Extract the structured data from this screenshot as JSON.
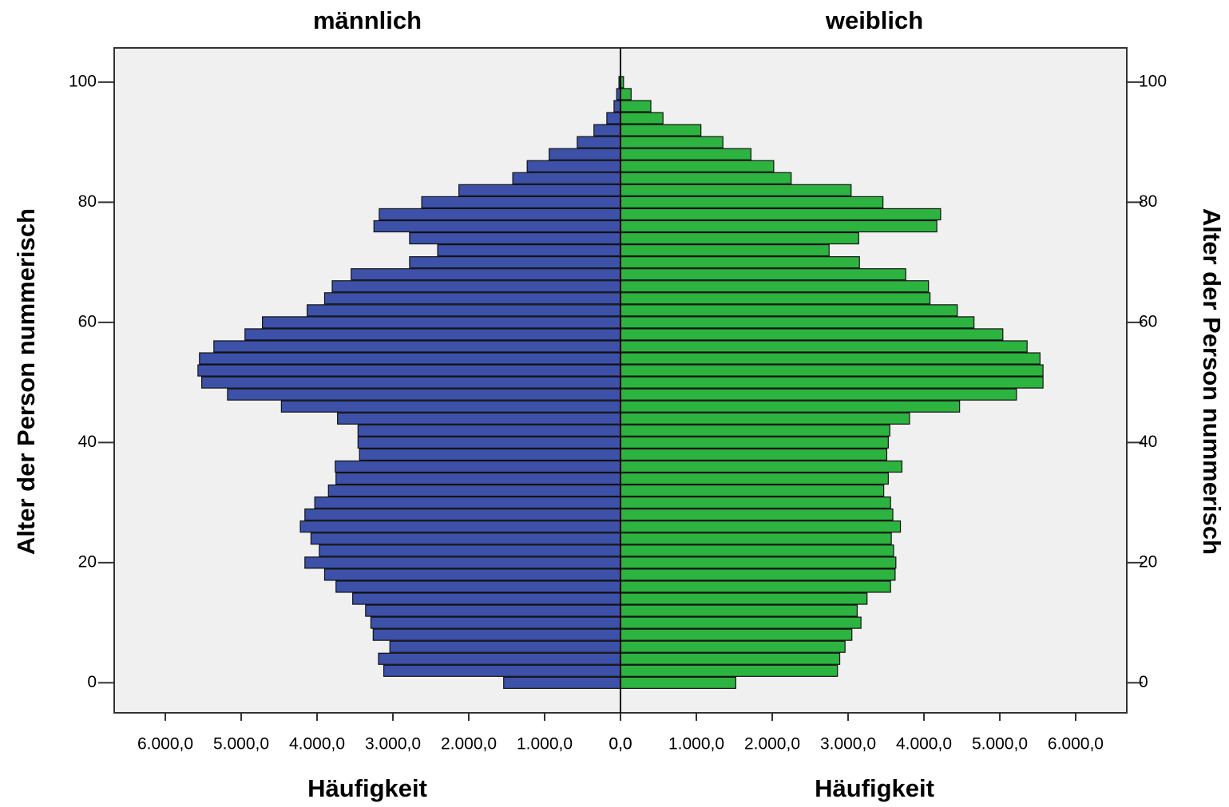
{
  "chart_data": {
    "type": "pyramid",
    "xlabel": "Häufigkeit",
    "ylabel": "Alter der Person nummerisch",
    "y": [
      0,
      2,
      4,
      6,
      8,
      10,
      12,
      14,
      16,
      18,
      20,
      22,
      24,
      26,
      28,
      30,
      32,
      34,
      36,
      38,
      40,
      42,
      44,
      46,
      48,
      50,
      52,
      54,
      56,
      58,
      60,
      62,
      64,
      66,
      68,
      70,
      72,
      74,
      76,
      78,
      80,
      82,
      84,
      86,
      88,
      90,
      92,
      94,
      96,
      98,
      100
    ],
    "series": [
      {
        "name": "männlich",
        "color": "#3d51a8",
        "values": [
          1540,
          3120,
          3190,
          3040,
          3260,
          3290,
          3360,
          3530,
          3750,
          3900,
          4160,
          3970,
          4080,
          4220,
          4160,
          4030,
          3850,
          3750,
          3760,
          3440,
          3460,
          3460,
          3730,
          4470,
          5180,
          5520,
          5570,
          5550,
          5360,
          4950,
          4720,
          4130,
          3900,
          3800,
          3550,
          2780,
          2410,
          2780,
          3250,
          3180,
          2620,
          2130,
          1420,
          1230,
          940,
          570,
          350,
          180,
          85,
          50,
          20
        ]
      },
      {
        "name": "weiblich",
        "color": "#2db33f",
        "values": [
          1520,
          2860,
          2890,
          2960,
          3050,
          3170,
          3120,
          3250,
          3560,
          3620,
          3630,
          3600,
          3570,
          3690,
          3590,
          3560,
          3470,
          3530,
          3710,
          3510,
          3530,
          3550,
          3810,
          4470,
          5220,
          5570,
          5570,
          5530,
          5360,
          5040,
          4660,
          4440,
          4080,
          4060,
          3760,
          3150,
          2750,
          3140,
          4170,
          4220,
          3460,
          3040,
          2250,
          2020,
          1720,
          1350,
          1060,
          560,
          400,
          140,
          40
        ]
      }
    ],
    "xlim": [
      0,
      6674
    ],
    "xticks": [
      {
        "value": 0,
        "label": "0,0"
      },
      {
        "value": 1000,
        "label": "1.000,0"
      },
      {
        "value": 2000,
        "label": "2.000,0"
      },
      {
        "value": 3000,
        "label": "3.000,0"
      },
      {
        "value": 4000,
        "label": "4.000,0"
      },
      {
        "value": 5000,
        "label": "5.000,0"
      },
      {
        "value": 6000,
        "label": "6.000,0"
      }
    ],
    "ylim": [
      -5,
      105.7
    ],
    "yticks": [
      0,
      20,
      40,
      60,
      80,
      100
    ]
  }
}
